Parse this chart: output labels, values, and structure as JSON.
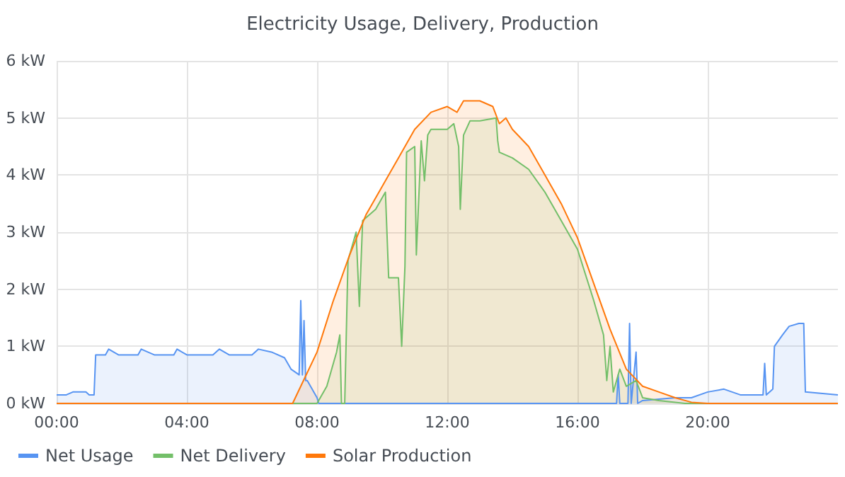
{
  "chart_data": {
    "type": "area",
    "title": "Electricity Usage, Delivery, Production",
    "xlim": [
      0,
      24
    ],
    "xticks": [
      {
        "value": 0,
        "label": "00:00"
      },
      {
        "value": 4,
        "label": "04:00"
      },
      {
        "value": 8,
        "label": "08:00"
      },
      {
        "value": 12,
        "label": "12:00"
      },
      {
        "value": 16,
        "label": "16:00"
      },
      {
        "value": 20,
        "label": "20:00"
      }
    ],
    "ylim": [
      0,
      6
    ],
    "yticks": [
      {
        "value": 0,
        "label": "0 kW"
      },
      {
        "value": 1,
        "label": "1 kW"
      },
      {
        "value": 2,
        "label": "2 kW"
      },
      {
        "value": 3,
        "label": "3 kW"
      },
      {
        "value": 4,
        "label": "4 kW"
      },
      {
        "value": 5,
        "label": "5 kW"
      },
      {
        "value": 6,
        "label": "6 kW"
      }
    ],
    "grid": true,
    "legend": "bottom left",
    "series": [
      {
        "name": "Net Usage",
        "color": "#5794f2",
        "x": [
          0,
          0.3,
          0.5,
          0.9,
          1.0,
          1.15,
          1.2,
          1.5,
          1.6,
          1.9,
          2.5,
          2.6,
          3.0,
          3.6,
          3.7,
          4.0,
          4.8,
          5.0,
          5.3,
          6.0,
          6.2,
          6.6,
          7.0,
          7.2,
          7.45,
          7.5,
          7.55,
          7.6,
          7.65,
          7.7,
          8.0,
          8.05,
          16.6,
          17.2,
          17.25,
          17.3,
          17.55,
          17.6,
          17.65,
          17.8,
          17.85,
          18.0,
          19.0,
          19.5,
          20.0,
          20.5,
          21.0,
          21.7,
          21.75,
          21.8,
          22.0,
          22.05,
          22.3,
          22.5,
          22.8,
          22.95,
          23.0,
          24
        ],
        "values": [
          0.15,
          0.15,
          0.2,
          0.2,
          0.15,
          0.15,
          0.85,
          0.85,
          0.95,
          0.85,
          0.85,
          0.95,
          0.85,
          0.85,
          0.95,
          0.85,
          0.85,
          0.95,
          0.85,
          0.85,
          0.95,
          0.9,
          0.8,
          0.6,
          0.5,
          1.8,
          0.5,
          1.45,
          0.4,
          0.4,
          0.1,
          0,
          0,
          0,
          0.5,
          0,
          0,
          1.4,
          0,
          0.9,
          0,
          0.05,
          0.1,
          0.1,
          0.2,
          0.25,
          0.15,
          0.15,
          0.7,
          0.15,
          0.25,
          1.0,
          1.2,
          1.35,
          1.4,
          1.4,
          0.2,
          0.15
        ]
      },
      {
        "name": "Net Delivery",
        "color": "#73bf69",
        "x": [
          0,
          8.0,
          8.3,
          8.6,
          8.7,
          8.75,
          8.85,
          8.95,
          9.2,
          9.3,
          9.4,
          9.8,
          10.0,
          10.1,
          10.2,
          10.5,
          10.6,
          10.7,
          10.75,
          11.0,
          11.05,
          11.2,
          11.3,
          11.4,
          11.5,
          12.0,
          12.2,
          12.35,
          12.4,
          12.5,
          12.7,
          13.0,
          13.5,
          13.55,
          13.6,
          14.0,
          14.5,
          15.0,
          15.5,
          16.0,
          16.5,
          16.8,
          16.9,
          17.0,
          17.1,
          17.3,
          17.5,
          17.8,
          18.0,
          18.5,
          19.0,
          19.3,
          24
        ],
        "values": [
          0,
          0,
          0.3,
          0.9,
          1.2,
          0,
          0,
          2.5,
          3.0,
          1.7,
          3.2,
          3.4,
          3.6,
          3.7,
          2.2,
          2.2,
          1.0,
          2.4,
          4.4,
          4.5,
          2.6,
          4.6,
          3.9,
          4.7,
          4.8,
          4.8,
          4.9,
          4.5,
          3.4,
          4.7,
          4.95,
          4.95,
          5.0,
          4.6,
          4.4,
          4.3,
          4.1,
          3.7,
          3.2,
          2.7,
          1.8,
          1.2,
          0.4,
          1.0,
          0.2,
          0.6,
          0.3,
          0.4,
          0.1,
          0.05,
          0.02,
          0,
          0
        ]
      },
      {
        "name": "Solar Production",
        "color": "#ff780a",
        "x": [
          0,
          7.25,
          7.5,
          8.0,
          8.5,
          9.0,
          9.5,
          10.0,
          10.5,
          11.0,
          11.5,
          12.0,
          12.3,
          12.5,
          13.0,
          13.4,
          13.6,
          13.8,
          14.0,
          14.5,
          15.0,
          15.5,
          16.0,
          16.5,
          17.0,
          17.5,
          18.0,
          18.5,
          19.0,
          19.5,
          20.0,
          24
        ],
        "values": [
          0,
          0,
          0.3,
          0.9,
          1.8,
          2.6,
          3.3,
          3.8,
          4.3,
          4.8,
          5.1,
          5.2,
          5.1,
          5.3,
          5.3,
          5.2,
          4.9,
          5.0,
          4.8,
          4.5,
          4.0,
          3.5,
          2.9,
          2.1,
          1.3,
          0.6,
          0.3,
          0.2,
          0.1,
          0.02,
          0,
          0
        ]
      }
    ]
  }
}
